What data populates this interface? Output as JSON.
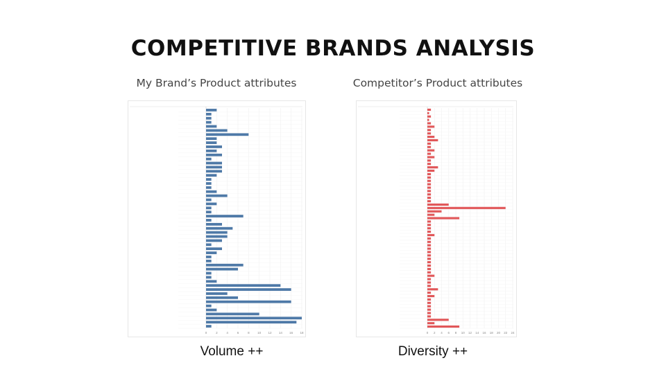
{
  "slide": {
    "title": "COMPETITIVE BRANDS ANALYSIS",
    "left_title": "My Brand’s Product attributes",
    "right_title": "Competitor’s Product attributes",
    "left_caption": "Volume ++",
    "right_caption": "Diversity ++"
  },
  "colors": {
    "left_bar": "#4e79a7",
    "right_bar": "#e15759"
  },
  "chart_data": [
    {
      "type": "bar",
      "orientation": "horizontal",
      "title": "My Brand’s Product attributes",
      "xlim": [
        0,
        18
      ],
      "xticks": [
        0,
        2,
        4,
        6,
        8,
        10,
        12,
        14,
        16,
        18
      ],
      "series": [
        {
          "values": [
            2,
            1,
            1,
            1,
            2,
            4,
            8,
            2,
            2,
            3,
            2,
            3,
            1,
            3,
            3,
            3,
            2,
            1,
            1,
            1,
            2,
            4,
            1,
            2,
            1,
            1,
            7,
            1,
            3,
            5,
            4,
            4,
            3,
            1,
            3,
            2,
            1,
            1,
            7,
            6,
            1,
            1,
            2,
            14,
            16,
            4,
            6,
            16,
            1,
            2,
            10,
            18,
            17,
            1
          ]
        }
      ]
    },
    {
      "type": "bar",
      "orientation": "horizontal",
      "title": "Competitor’s Product attributes",
      "xlim": [
        0,
        24
      ],
      "xticks": [
        0,
        2,
        4,
        6,
        8,
        10,
        12,
        14,
        16,
        18,
        20,
        22,
        24
      ],
      "series": [
        {
          "values": [
            1,
            0.5,
            1,
            0.5,
            1,
            2,
            1,
            1,
            2,
            3,
            1,
            1,
            2,
            1,
            2,
            1,
            1,
            3,
            2,
            1,
            1,
            1,
            1,
            1,
            1,
            1,
            1,
            1,
            6,
            22,
            4,
            2,
            9,
            1,
            1,
            1,
            1,
            2,
            1,
            1,
            1,
            1,
            1,
            1,
            1,
            1,
            1,
            1,
            1,
            2,
            1,
            1,
            1,
            3,
            1,
            2,
            1,
            1,
            1,
            1,
            1,
            1,
            6,
            2,
            9
          ]
        }
      ]
    }
  ]
}
